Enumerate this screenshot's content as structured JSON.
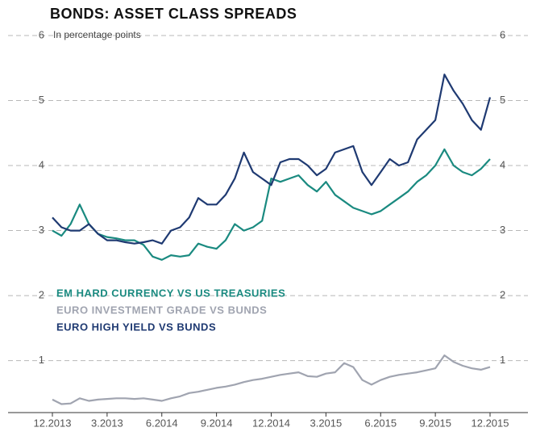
{
  "chart_data": {
    "type": "line",
    "title": "BONDS: ASSET CLASS SPREADS",
    "subtitle": "In percentage points",
    "categories": [
      "12.2013",
      null,
      null,
      null,
      null,
      null,
      "3.2013",
      null,
      null,
      null,
      null,
      null,
      "6.2014",
      null,
      null,
      null,
      null,
      null,
      "9.2014",
      null,
      null,
      null,
      null,
      null,
      "12.2014",
      null,
      null,
      null,
      null,
      null,
      "3.2015",
      null,
      null,
      null,
      null,
      null,
      "6.2015",
      null,
      null,
      null,
      null,
      null,
      "9.2015",
      null,
      null,
      null,
      null,
      null,
      "12.2015"
    ],
    "series": [
      {
        "name": "EM HARD CURRENCY VS US TREASURIES",
        "color": "#1a8a80",
        "values": [
          3.0,
          2.92,
          3.1,
          3.4,
          3.1,
          2.95,
          2.9,
          2.88,
          2.85,
          2.85,
          2.78,
          2.6,
          2.55,
          2.62,
          2.6,
          2.62,
          2.8,
          2.75,
          2.72,
          2.85,
          3.1,
          3.0,
          3.05,
          3.15,
          3.8,
          3.75,
          3.8,
          3.85,
          3.7,
          3.6,
          3.75,
          3.55,
          3.45,
          3.35,
          3.3,
          3.25,
          3.3,
          3.4,
          3.5,
          3.6,
          3.75,
          3.85,
          4.0,
          4.25,
          4.0,
          3.9,
          3.85,
          3.95,
          4.1
        ]
      },
      {
        "name": "EURO INVESTMENT GRADE VS BUNDS",
        "color": "#a0a4b0",
        "values": [
          0.4,
          0.33,
          0.34,
          0.42,
          0.38,
          0.4,
          0.41,
          0.42,
          0.42,
          0.41,
          0.42,
          0.4,
          0.38,
          0.42,
          0.45,
          0.5,
          0.52,
          0.55,
          0.58,
          0.6,
          0.63,
          0.67,
          0.7,
          0.72,
          0.75,
          0.78,
          0.8,
          0.82,
          0.76,
          0.75,
          0.8,
          0.82,
          0.96,
          0.9,
          0.7,
          0.63,
          0.7,
          0.75,
          0.78,
          0.8,
          0.82,
          0.85,
          0.88,
          1.08,
          0.98,
          0.92,
          0.88,
          0.86,
          0.9
        ]
      },
      {
        "name": "EURO HIGH YIELD VS BUNDS",
        "color": "#1f3a72",
        "values": [
          3.2,
          3.05,
          3.0,
          3.0,
          3.1,
          2.95,
          2.85,
          2.85,
          2.82,
          2.8,
          2.82,
          2.85,
          2.8,
          3.0,
          3.05,
          3.2,
          3.5,
          3.4,
          3.4,
          3.55,
          3.8,
          4.2,
          3.9,
          3.8,
          3.7,
          4.05,
          4.1,
          4.1,
          4.0,
          3.85,
          3.95,
          4.2,
          4.25,
          4.3,
          3.9,
          3.7,
          3.9,
          4.1,
          4.0,
          4.05,
          4.4,
          4.55,
          4.7,
          5.4,
          5.15,
          4.95,
          4.7,
          4.55,
          5.05
        ]
      }
    ],
    "ylim": [
      0.2,
      6
    ],
    "yticks": [
      1,
      2,
      3,
      4,
      5,
      6
    ],
    "grid": true,
    "legend": "left"
  }
}
